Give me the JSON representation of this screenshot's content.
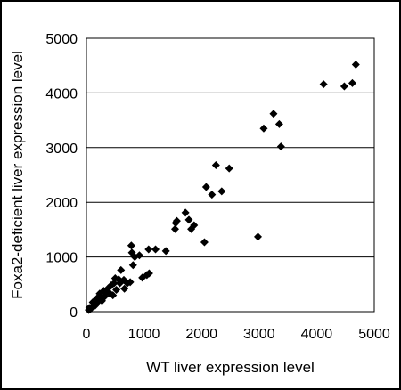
{
  "chart_data": {
    "type": "scatter",
    "title": "",
    "xlabel": "WT liver expression level",
    "ylabel": "Foxa2-deficient liver expression level",
    "xlim": [
      0,
      5000
    ],
    "ylim": [
      0,
      5000
    ],
    "x_ticks": [
      "0",
      "1000",
      "2000",
      "3000",
      "4000",
      "5000"
    ],
    "y_ticks": [
      "0",
      "1000",
      "2000",
      "3000",
      "4000",
      "5000"
    ],
    "grid": "horizontal",
    "legend": "none",
    "marker": "diamond",
    "colors": {
      "marker": "#000000",
      "grid": "#000000",
      "frame": "#000000",
      "border": "#000000"
    },
    "points": [
      [
        4680,
        4520
      ],
      [
        4620,
        4180
      ],
      [
        4480,
        4120
      ],
      [
        4120,
        4160
      ],
      [
        3250,
        3620
      ],
      [
        3350,
        3430
      ],
      [
        3380,
        3020
      ],
      [
        3080,
        3350
      ],
      [
        2980,
        1370
      ],
      [
        2480,
        2620
      ],
      [
        2350,
        2200
      ],
      [
        2250,
        2680
      ],
      [
        2180,
        2140
      ],
      [
        2080,
        2280
      ],
      [
        2050,
        1270
      ],
      [
        1870,
        1580
      ],
      [
        1820,
        1510
      ],
      [
        1720,
        1810
      ],
      [
        1780,
        1680
      ],
      [
        1570,
        1660
      ],
      [
        1540,
        1510
      ],
      [
        1550,
        1620
      ],
      [
        1380,
        1110
      ],
      [
        1200,
        1140
      ],
      [
        1080,
        1140
      ],
      [
        1090,
        700
      ],
      [
        1050,
        670
      ],
      [
        970,
        620
      ],
      [
        920,
        1030
      ],
      [
        840,
        1000
      ],
      [
        810,
        850
      ],
      [
        780,
        1210
      ],
      [
        790,
        1080
      ],
      [
        760,
        540
      ],
      [
        710,
        520
      ],
      [
        660,
        420
      ],
      [
        650,
        580
      ],
      [
        600,
        760
      ],
      [
        580,
        520
      ],
      [
        560,
        590
      ],
      [
        520,
        400
      ],
      [
        500,
        610
      ],
      [
        480,
        520
      ],
      [
        460,
        300
      ],
      [
        430,
        480
      ],
      [
        400,
        340
      ],
      [
        380,
        430
      ],
      [
        350,
        370
      ],
      [
        320,
        280
      ],
      [
        300,
        380
      ],
      [
        270,
        200
      ],
      [
        250,
        260
      ],
      [
        230,
        330
      ],
      [
        200,
        180
      ],
      [
        180,
        240
      ],
      [
        160,
        150
      ],
      [
        150,
        110
      ],
      [
        130,
        120
      ],
      [
        110,
        170
      ],
      [
        100,
        90
      ],
      [
        80,
        60
      ],
      [
        60,
        40
      ],
      [
        50,
        70
      ],
      [
        40,
        30
      ]
    ]
  }
}
